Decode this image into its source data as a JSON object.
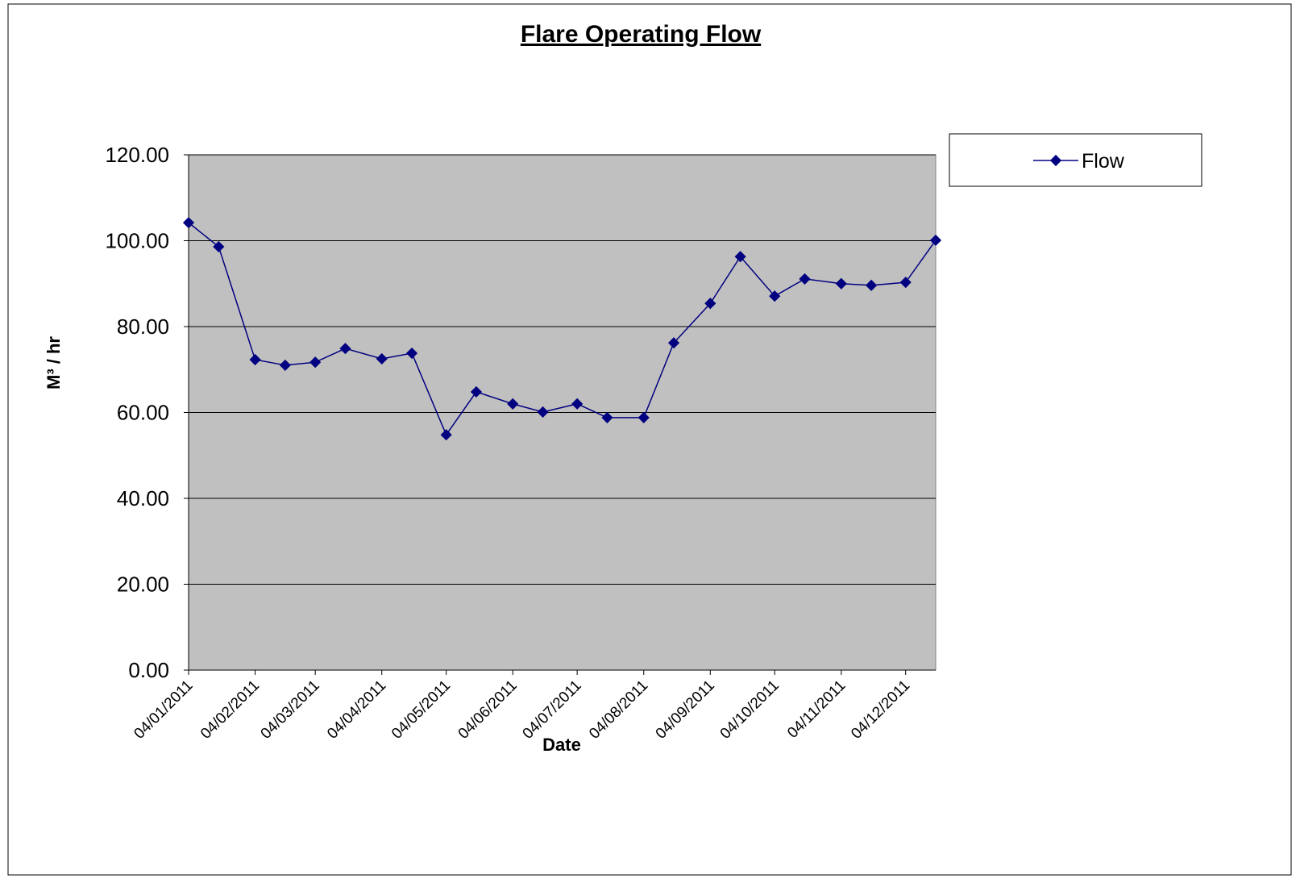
{
  "chart_data": {
    "type": "line",
    "title": "Flare Operating Flow",
    "x_label": "Date",
    "y_label": "M³ / hr",
    "x": [
      "04/01/2011",
      "18/01/2011",
      "04/02/2011",
      "18/02/2011",
      "04/03/2011",
      "18/03/2011",
      "04/04/2011",
      "18/04/2011",
      "04/05/2011",
      "18/05/2011",
      "04/06/2011",
      "18/06/2011",
      "04/07/2011",
      "18/07/2011",
      "04/08/2011",
      "18/08/2011",
      "04/09/2011",
      "18/09/2011",
      "04/10/2011",
      "18/10/2011",
      "04/11/2011",
      "18/11/2011",
      "04/12/2011",
      "18/12/2011"
    ],
    "series": [
      {
        "name": "Flow",
        "color": "#000080",
        "values": [
          104.2,
          98.6,
          72.3,
          71.0,
          71.7,
          74.9,
          72.5,
          73.8,
          54.8,
          64.8,
          62.0,
          60.1,
          62.0,
          58.8,
          58.8,
          76.2,
          85.4,
          96.3,
          87.1,
          91.1,
          90.0,
          89.6,
          90.3,
          100.1
        ]
      }
    ],
    "xlim": [
      "04/01/2011",
      "18/12/2011"
    ],
    "xticks": [
      "04/01/2011",
      "04/02/2011",
      "04/03/2011",
      "04/04/2011",
      "04/05/2011",
      "04/06/2011",
      "04/07/2011",
      "04/08/2011",
      "04/09/2011",
      "04/10/2011",
      "04/11/2011",
      "04/12/2011"
    ],
    "ylim": [
      0,
      120
    ],
    "yticks": [
      {
        "value": 0,
        "label": "0.00"
      },
      {
        "value": 20,
        "label": "20.00"
      },
      {
        "value": 40,
        "label": "40.00"
      },
      {
        "value": 60,
        "label": "60.00"
      },
      {
        "value": 80,
        "label": "80.00"
      },
      {
        "value": 100,
        "label": "100.00"
      },
      {
        "value": 120,
        "label": "120.00"
      }
    ],
    "grid": true,
    "legend": "right",
    "plot_background": "#c0c0c0"
  }
}
